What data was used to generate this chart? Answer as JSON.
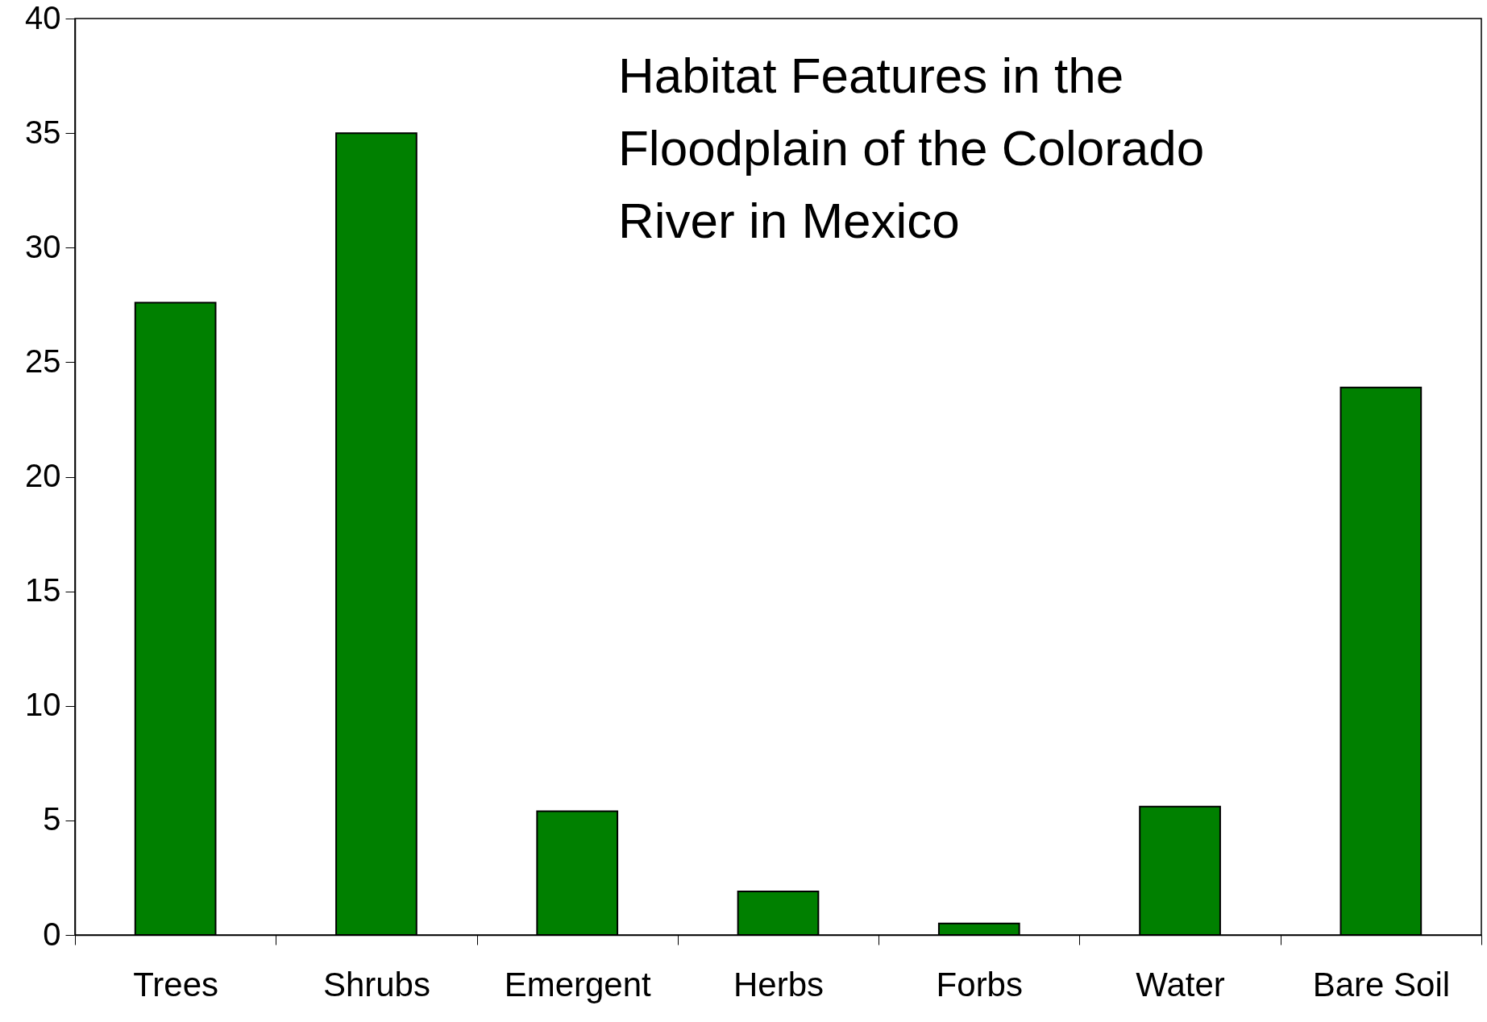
{
  "chart_data": {
    "type": "bar",
    "title": "Habitat Features in the Floodplain of the Colorado River in Mexico",
    "categories": [
      "Trees",
      "Shrubs",
      "Emergent",
      "Herbs",
      "Forbs",
      "Water",
      "Bare Soil"
    ],
    "values": [
      27.6,
      35.0,
      5.4,
      1.9,
      0.5,
      5.6,
      23.9
    ],
    "color": "#008000",
    "ylim": [
      0,
      40
    ],
    "yticks": [
      0,
      5,
      10,
      15,
      20,
      25,
      30,
      35,
      40
    ],
    "grid": false
  }
}
